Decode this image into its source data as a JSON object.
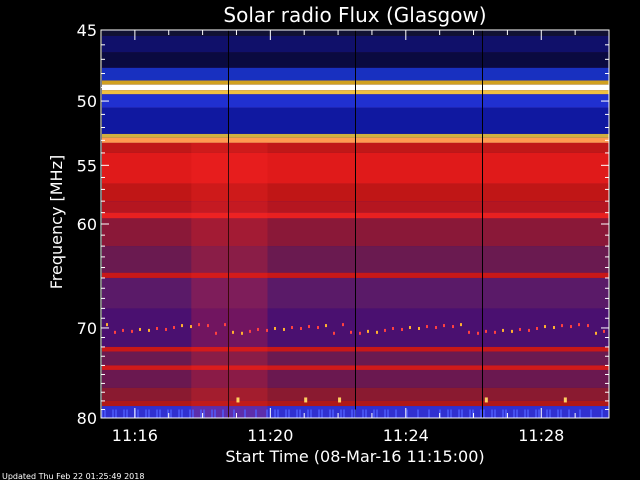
{
  "chart_data": {
    "type": "heatmap",
    "title": "Solar radio Flux (Glasgow)",
    "xlabel": "Start Time (08-Mar-16 11:15:00)",
    "ylabel": "Frequency [MHz]",
    "x_ticks": [
      "11:16",
      "11:20",
      "11:24",
      "11:28"
    ],
    "y_ticks": [
      "45",
      "50",
      "55",
      "60",
      "70",
      "80"
    ],
    "x_range": [
      "11:15:00",
      "11:30:00"
    ],
    "y_range_mhz": [
      45,
      80
    ],
    "y_scale": "log",
    "y_inverted": true,
    "colormap": "black-blue-red-yellow-white",
    "notes": {
      "bright_band_mhz": 49,
      "strong_band_mhz": 53
    }
  },
  "footer": {
    "updated": "Updated Thu Feb 22 01:25:49 2018"
  },
  "colors": {
    "background": "#000000",
    "text": "#ffffff"
  }
}
